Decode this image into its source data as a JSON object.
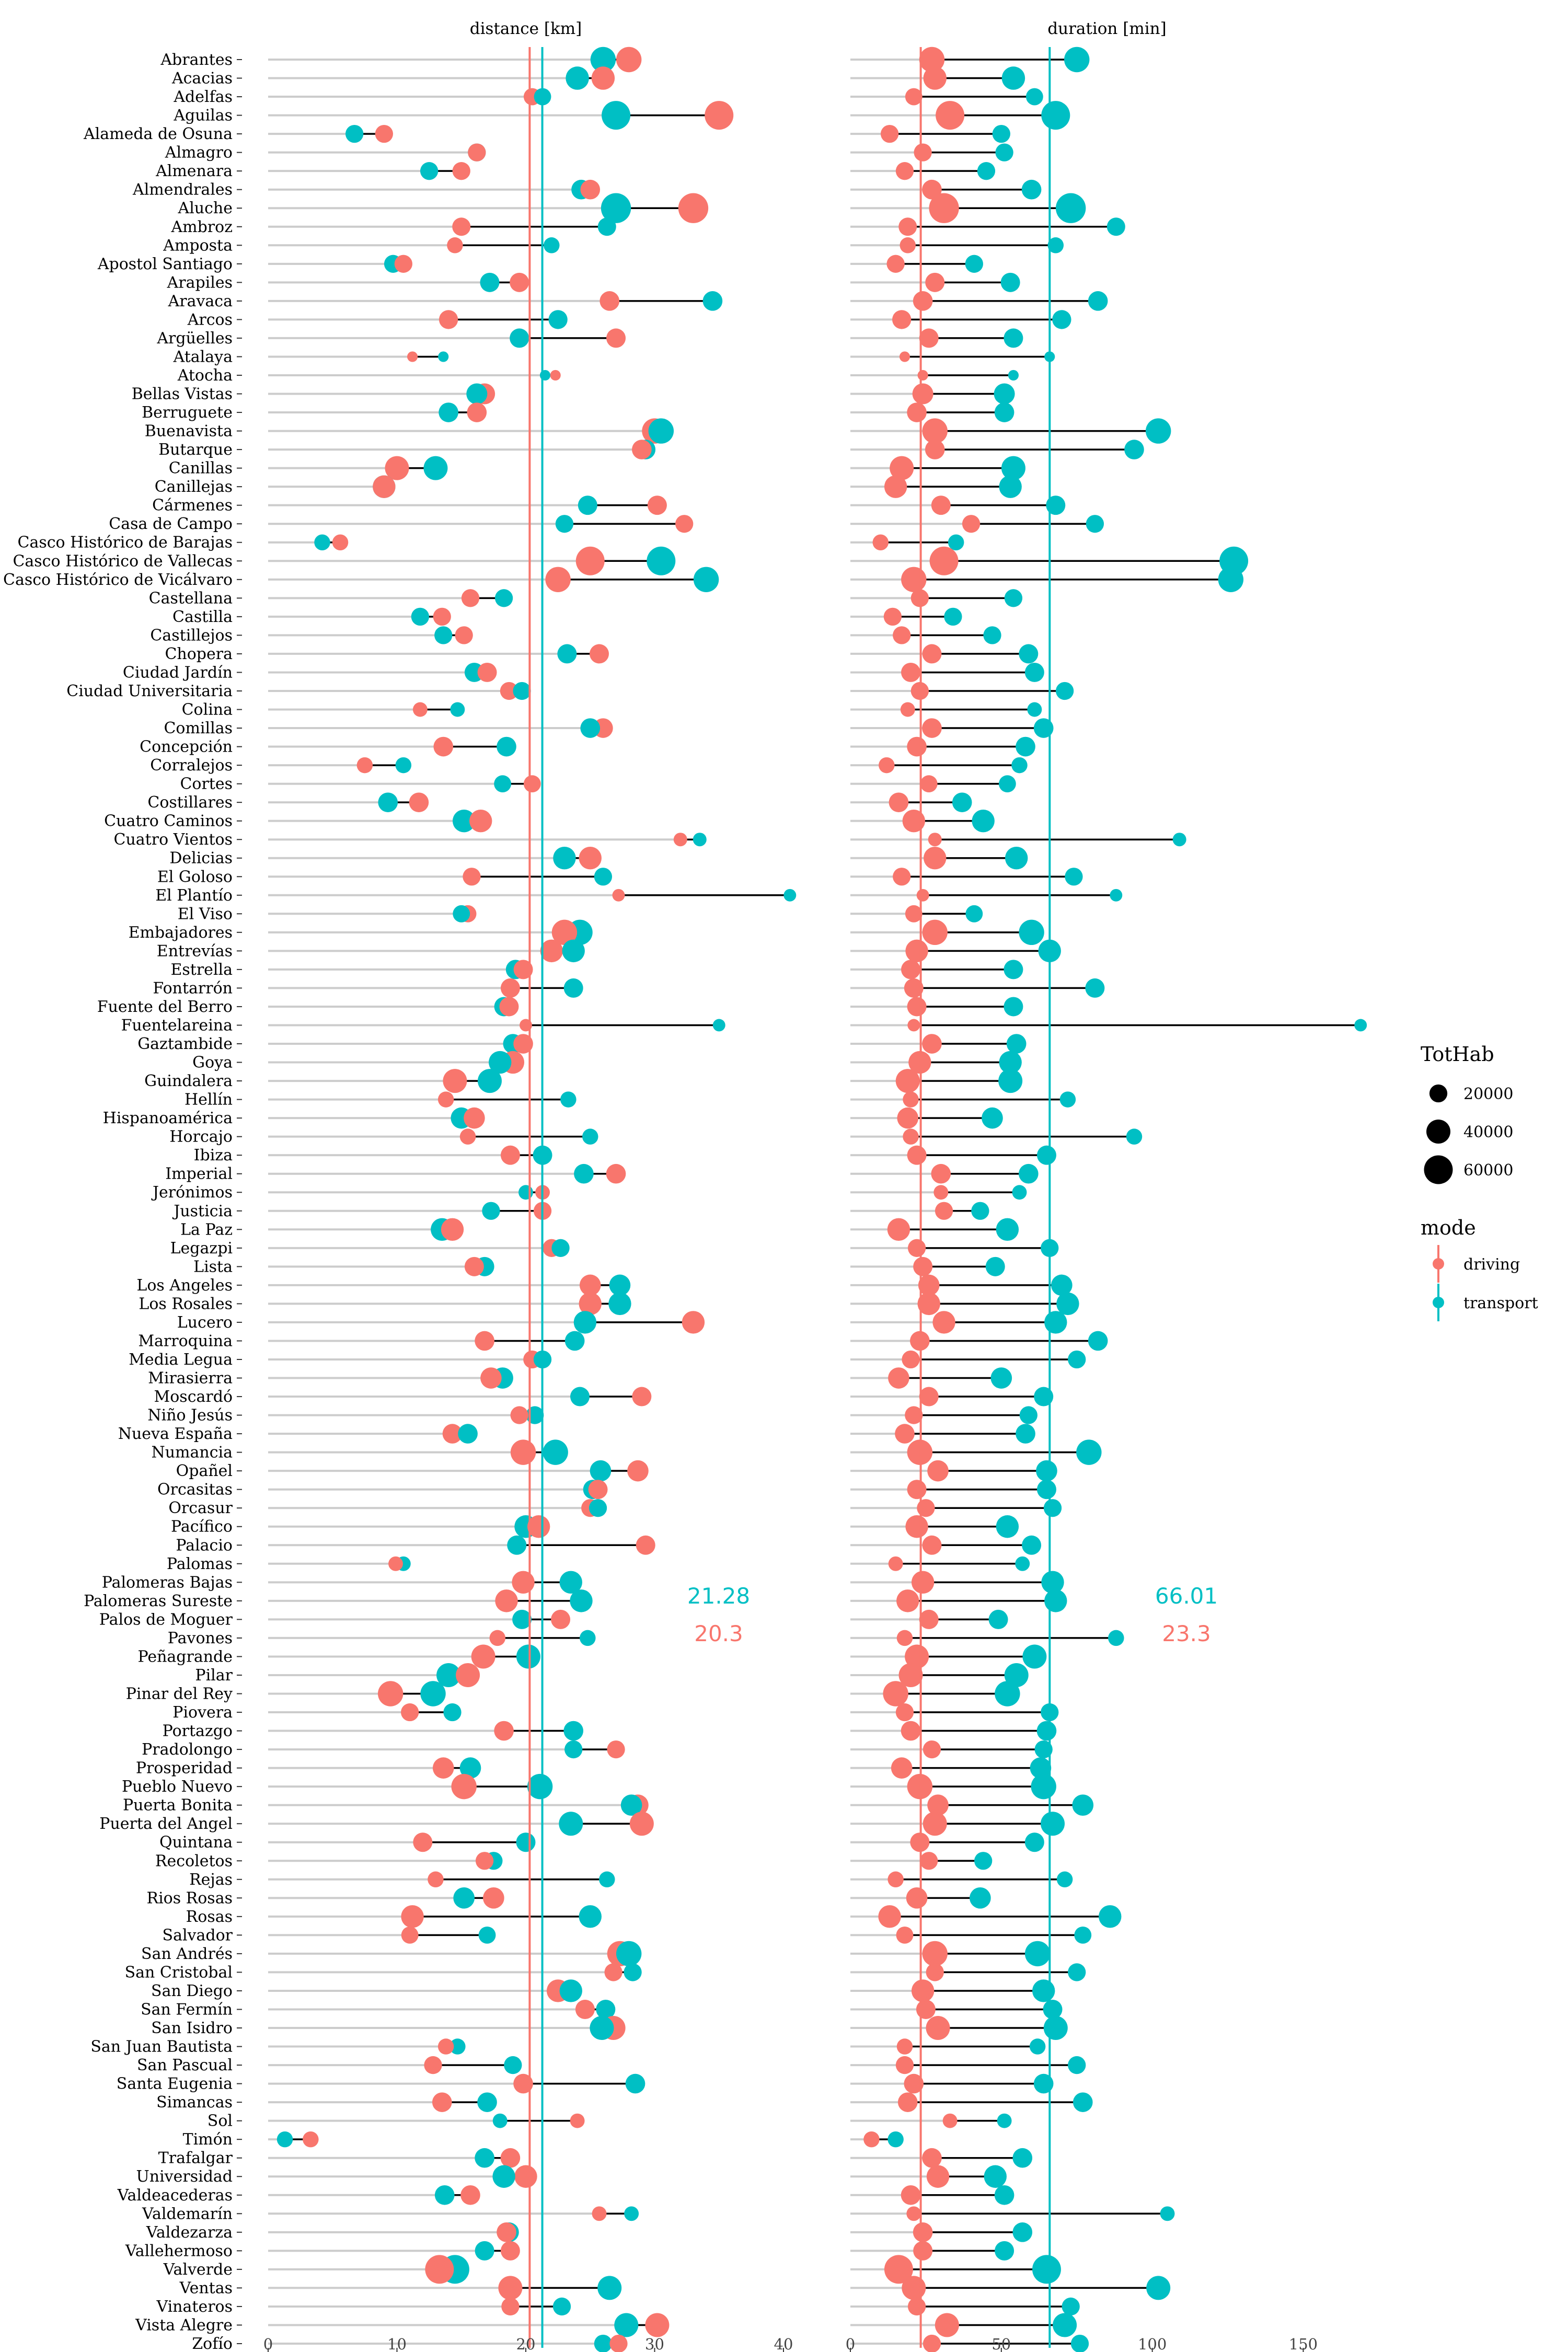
{
  "chart_data": {
    "type": "dumbbell",
    "panels": [
      {
        "id": "distance",
        "title": "distance [km]",
        "xlim": [
          0,
          40
        ],
        "ticks": [
          0,
          10,
          20,
          30,
          40
        ],
        "means": {
          "driving": 20.3,
          "transport": 21.28
        },
        "mean_labels": {
          "driving": "20.3",
          "transport": "21.28"
        }
      },
      {
        "id": "duration",
        "title": "duration [min]",
        "xlim": [
          0,
          170
        ],
        "ticks": [
          0,
          50,
          100,
          150
        ],
        "means": {
          "driving": 23.3,
          "transport": 66.01
        },
        "mean_labels": {
          "driving": "23.3",
          "transport": "66.01"
        }
      }
    ],
    "series": [
      {
        "name": "driving",
        "color": "#F8766D"
      },
      {
        "name": "transport",
        "color": "#00BFC4"
      }
    ],
    "legend": {
      "size_title": "TotHab",
      "size_entries": [
        20000,
        40000,
        60000
      ],
      "color_title": "mode",
      "color_entries": [
        "driving",
        "transport"
      ],
      "placement": "right"
    },
    "fields": [
      "name",
      "dist_driving",
      "dist_transport",
      "dur_driving",
      "dur_transport",
      "tothab"
    ],
    "rows": [
      [
        "Abrantes",
        28,
        26,
        27,
        75,
        45000
      ],
      [
        "Acacias",
        26,
        24,
        28,
        54,
        37000
      ],
      [
        "Adelfas",
        20.5,
        21.3,
        21,
        61,
        18000
      ],
      [
        "Aguilas",
        35,
        27,
        33,
        68,
        60000
      ],
      [
        "Alameda de Osuna",
        9,
        6.7,
        13,
        50,
        20000
      ],
      [
        "Almagro",
        16.2,
        16.2,
        24,
        51,
        20000
      ],
      [
        "Almenara",
        15,
        12.5,
        18,
        45,
        20000
      ],
      [
        "Almendrales",
        25,
        24.3,
        27,
        60,
        25000
      ],
      [
        "Aluche",
        33,
        27,
        31,
        73,
        66000
      ],
      [
        "Ambroz",
        15,
        26.3,
        19,
        88,
        21000
      ],
      [
        "Amposta",
        14.5,
        22,
        19,
        68,
        15000
      ],
      [
        "Apostol Santiago",
        10.5,
        9.7,
        15,
        41,
        20000
      ],
      [
        "Arapiles",
        19.5,
        17.2,
        28,
        53,
        24000
      ],
      [
        "Aravaca",
        26.5,
        34.5,
        24,
        82,
        25000
      ],
      [
        "Arcos",
        14,
        22.5,
        17,
        70,
        23000
      ],
      [
        "Argüelles",
        27,
        19.5,
        26,
        54,
        24000
      ],
      [
        "Atalaya",
        11.2,
        13.6,
        18,
        66,
        5000
      ],
      [
        "Atocha",
        22.3,
        21.5,
        24,
        54,
        5000
      ],
      [
        "Bellas Vistas",
        16.8,
        16.2,
        24,
        51,
        29000
      ],
      [
        "Berruguete",
        16.2,
        14,
        22,
        51,
        25000
      ],
      [
        "Buenavista",
        30,
        30.5,
        28,
        102,
        45000
      ],
      [
        "Butarque",
        29,
        29.3,
        28,
        94,
        25000
      ],
      [
        "Canillas",
        10,
        13,
        17,
        54,
        40000
      ],
      [
        "Canillejas",
        9,
        9,
        15,
        53,
        35000
      ],
      [
        "Cármenes",
        30.2,
        24.8,
        30,
        68,
        24000
      ],
      [
        "Casa de Campo",
        32.3,
        23,
        40,
        81,
        20000
      ],
      [
        "Casco Histórico de Barajas",
        5.6,
        4.2,
        10,
        35,
        15000
      ],
      [
        "Casco Histórico de Vallecas",
        25,
        30.5,
        31,
        127,
        60000
      ],
      [
        "Casco Histórico de Vicálvaro",
        22.5,
        34,
        21,
        126,
        45000
      ],
      [
        "Castellana",
        15.7,
        18.3,
        23,
        54,
        20000
      ],
      [
        "Castilla",
        13.5,
        11.8,
        14,
        34,
        20000
      ],
      [
        "Castillejos",
        15.2,
        13.6,
        17,
        47,
        20000
      ],
      [
        "Chopera",
        25.7,
        23.2,
        27,
        59,
        24000
      ],
      [
        "Ciudad Jardín",
        17,
        16,
        20,
        61,
        24000
      ],
      [
        "Ciudad Universitaria",
        18.7,
        19.7,
        23,
        71,
        20000
      ],
      [
        "Colina",
        11.8,
        14.7,
        19,
        61,
        12000
      ],
      [
        "Comillas",
        26,
        25,
        27,
        64,
        25000
      ],
      [
        "Concepción",
        13.6,
        18.5,
        22,
        58,
        25000
      ],
      [
        "Corralejos",
        7.5,
        10.5,
        12,
        56,
        15000
      ],
      [
        "Cortes",
        20.5,
        18.2,
        26,
        52,
        18000
      ],
      [
        "Costillares",
        11.7,
        9.3,
        16,
        37,
        25000
      ],
      [
        "Cuatro Caminos",
        16.5,
        15.2,
        21,
        44,
        35000
      ],
      [
        "Cuatro Vientos",
        32,
        33.5,
        28,
        109,
        10000
      ],
      [
        "Delicias",
        25,
        23,
        28,
        55,
        35000
      ],
      [
        "El Goloso",
        15.8,
        26,
        17,
        74,
        20000
      ],
      [
        "El Plantío",
        27.2,
        40.5,
        24,
        88,
        8000
      ],
      [
        "El Viso",
        15.5,
        15,
        21,
        41,
        18000
      ],
      [
        "Embajadores",
        23,
        24.2,
        28,
        60,
        45000
      ],
      [
        "Entrevías",
        22,
        23.7,
        22,
        66,
        35000
      ],
      [
        "Estrella",
        19.8,
        19.2,
        20,
        54,
        24000
      ],
      [
        "Fontarrón",
        18.8,
        23.7,
        21,
        81,
        24000
      ],
      [
        "Fuente del Berro",
        18.7,
        18.3,
        22,
        54,
        24000
      ],
      [
        "Fuentelareina",
        20,
        35,
        21,
        169,
        8000
      ],
      [
        "Gaztambide",
        19.8,
        19,
        27,
        55,
        25000
      ],
      [
        "Goya",
        19,
        18,
        23,
        53,
        35000
      ],
      [
        "Guindalera",
        14.5,
        17.2,
        19,
        53,
        40000
      ],
      [
        "Hellín",
        13.8,
        23.3,
        20,
        72,
        15000
      ],
      [
        "Hispanoamérica",
        16,
        15,
        19,
        47,
        30000
      ],
      [
        "Horcajo",
        15.5,
        25,
        20,
        94,
        15000
      ],
      [
        "Ibiza",
        18.8,
        21.3,
        22,
        65,
        24000
      ],
      [
        "Imperial",
        27,
        24.5,
        30,
        59,
        25000
      ],
      [
        "Jerónimos",
        21.3,
        20,
        30,
        56,
        12000
      ],
      [
        "Justicia",
        21.3,
        17.3,
        31,
        43,
        20000
      ],
      [
        "La Paz",
        14.3,
        13.5,
        16,
        52,
        35000
      ],
      [
        "Legazpi",
        22,
        22.7,
        22,
        66,
        20000
      ],
      [
        "Lista",
        16,
        16.8,
        24,
        48,
        24000
      ],
      [
        "Los Angeles",
        25,
        27.3,
        26,
        70,
        30000
      ],
      [
        "Los Rosales",
        25,
        27.3,
        26,
        72,
        35000
      ],
      [
        "Lucero",
        33,
        24.6,
        31,
        68,
        35000
      ],
      [
        "Marroquina",
        16.8,
        23.8,
        23,
        82,
        25000
      ],
      [
        "Media Legua",
        20.5,
        21.3,
        20,
        75,
        20000
      ],
      [
        "Mirasierra",
        17.3,
        18.2,
        16,
        50,
        30000
      ],
      [
        "Moscardó",
        29,
        24.2,
        26,
        64,
        24000
      ],
      [
        "Niño Jesús",
        19.5,
        20.7,
        21,
        59,
        20000
      ],
      [
        "Nueva España",
        14.3,
        15.5,
        18,
        58,
        25000
      ],
      [
        "Numancia",
        19.8,
        22.3,
        23,
        79,
        45000
      ],
      [
        "Opañel",
        28.7,
        25.8,
        29,
        65,
        30000
      ],
      [
        "Orcasitas",
        25.6,
        25.2,
        22,
        65,
        24000
      ],
      [
        "Orcasur",
        25,
        25.6,
        25,
        67,
        20000
      ],
      [
        "Pacífico",
        21,
        20,
        22,
        52,
        35000
      ],
      [
        "Palacio",
        29.3,
        19.3,
        27,
        60,
        24000
      ],
      [
        "Palomas",
        9.9,
        10.5,
        15,
        57,
        12000
      ],
      [
        "Palomeras Bajas",
        19.8,
        23.5,
        24,
        67,
        35000
      ],
      [
        "Palomeras Sureste",
        18.5,
        24.3,
        19,
        68,
        35000
      ],
      [
        "Palos de Moguer",
        22.7,
        19.7,
        26,
        49,
        24000
      ],
      [
        "Pavones",
        17.8,
        24.8,
        18,
        88,
        15000
      ],
      [
        "Peñagrande",
        16.7,
        20.2,
        22,
        61,
        40000
      ],
      [
        "Pilar",
        15.5,
        14,
        20,
        55,
        40000
      ],
      [
        "Pinar del Rey",
        9.5,
        12.8,
        15,
        52,
        45000
      ],
      [
        "Piovera",
        11,
        14.3,
        18,
        66,
        20000
      ],
      [
        "Portazgo",
        18.3,
        23.7,
        20,
        65,
        25000
      ],
      [
        "Pradolongo",
        27,
        23.7,
        27,
        64,
        20000
      ],
      [
        "Prosperidad",
        13.6,
        15.7,
        17,
        63,
        30000
      ],
      [
        "Pueblo Nuevo",
        15.2,
        21.1,
        23,
        64,
        45000
      ],
      [
        "Puerta Bonita",
        28.7,
        28.2,
        29,
        77,
        30000
      ],
      [
        "Puerta del Angel",
        29,
        23.5,
        28,
        67,
        40000
      ],
      [
        "Quintana",
        12,
        20,
        23,
        61,
        24000
      ],
      [
        "Recoletos",
        16.8,
        17.5,
        26,
        44,
        20000
      ],
      [
        "Rejas",
        13,
        26.3,
        15,
        71,
        15000
      ],
      [
        "Rios Rosas",
        17.5,
        15.2,
        22,
        43,
        30000
      ],
      [
        "Rosas",
        11.2,
        25,
        13,
        86,
        35000
      ],
      [
        "Salvador",
        11,
        17,
        18,
        77,
        18000
      ],
      [
        "San Andrés",
        27.3,
        28,
        28,
        62,
        45000
      ],
      [
        "San Cristobal",
        26.8,
        28.3,
        28,
        75,
        20000
      ],
      [
        "San Diego",
        22.5,
        23.5,
        24,
        64,
        35000
      ],
      [
        "San Fermín",
        24.6,
        26.2,
        25,
        67,
        24000
      ],
      [
        "San Isidro",
        26.8,
        25.9,
        29,
        68,
        40000
      ],
      [
        "San Juan Bautista",
        13.8,
        14.7,
        18,
        62,
        15000
      ],
      [
        "San Pascual",
        12.8,
        19,
        18,
        75,
        20000
      ],
      [
        "Santa Eugenia",
        19.8,
        28.5,
        21,
        64,
        25000
      ],
      [
        "Simancas",
        13.5,
        17,
        19,
        77,
        25000
      ],
      [
        "Sol",
        24,
        18,
        33,
        51,
        12000
      ],
      [
        "Timón",
        3.3,
        1.3,
        7,
        15,
        15000
      ],
      [
        "Trafalgar",
        18.8,
        16.8,
        27,
        57,
        25000
      ],
      [
        "Universidad",
        20,
        18.3,
        29,
        48,
        35000
      ],
      [
        "Valdeacederas",
        15.7,
        13.7,
        20,
        51,
        25000
      ],
      [
        "Valdemarín",
        25.7,
        28.2,
        21,
        105,
        12000
      ],
      [
        "Valdezarza",
        18.5,
        18.7,
        24,
        57,
        25000
      ],
      [
        "Vallehermoso",
        18.8,
        16.8,
        24,
        51,
        24000
      ],
      [
        "Valverde",
        13.3,
        14.5,
        16,
        65,
        60000
      ],
      [
        "Ventas",
        18.8,
        26.5,
        21,
        102,
        40000
      ],
      [
        "Vinateros",
        18.8,
        22.8,
        22,
        73,
        20000
      ],
      [
        "Vista Alegre",
        30.2,
        27.8,
        32,
        71,
        40000
      ],
      [
        "Zofío",
        27.2,
        26,
        27,
        76,
        20000
      ]
    ]
  }
}
